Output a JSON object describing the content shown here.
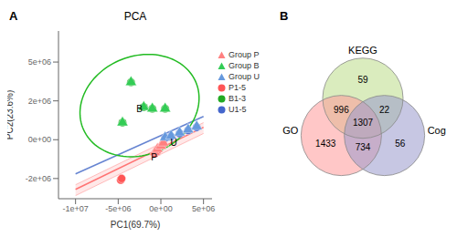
{
  "chart_data": [
    {
      "type": "scatter",
      "panel_label": "A",
      "title": "PCA",
      "x_label": "PC1(69.7%)",
      "y_label": "PC2(23.6%)",
      "xlim": [
        -12000000,
        6000000
      ],
      "ylim": [
        -3800000,
        7000000
      ],
      "xticks": [
        {
          "value": -10000000,
          "label": "-1e+07"
        },
        {
          "value": -5000000,
          "label": "-5e+06"
        },
        {
          "value": 0,
          "label": "0e+00"
        },
        {
          "value": 5000000,
          "label": "5e+06"
        }
      ],
      "yticks": [
        {
          "value": -2500000,
          "label": "-2e+06"
        },
        {
          "value": 0,
          "label": "0e+00"
        },
        {
          "value": 2500000,
          "label": "2e+06"
        },
        {
          "value": 5000000,
          "label": "5e+06"
        }
      ],
      "grid": false,
      "legend": "upper right",
      "series": [
        {
          "type": "band",
          "color": "#FF6666",
          "x": [
            -10000000,
            5000000
          ],
          "lower": [
            -3600000,
            400000
          ],
          "upper": [
            -2900000,
            1100000
          ]
        },
        {
          "type": "line",
          "color": "#FF6666",
          "x": [
            -10000000,
            5000000
          ],
          "values": [
            -3200000,
            800000
          ]
        },
        {
          "type": "line",
          "color": "#5577CC",
          "x": [
            -10000000,
            5000000
          ],
          "values": [
            -2200000,
            1500000
          ]
        },
        {
          "type": "ellipse",
          "color": "#22BB22",
          "center": [
            -2500000,
            2200000
          ],
          "width": 14000000,
          "height": 6500000,
          "angle": 5
        },
        {
          "type": "scatter",
          "name": "Group P",
          "marker": "triangle",
          "color": "#FF8080",
          "x": [
            -700000,
            -400000,
            0,
            300000
          ],
          "values": [
            -800000,
            -600000,
            -400000,
            -200000
          ]
        },
        {
          "type": "scatter",
          "name": "Group B",
          "marker": "triangle",
          "color": "#33CC55",
          "x": [
            -4500000,
            -3500000,
            -2000000,
            -1000000,
            500000
          ],
          "values": [
            1100000,
            3700000,
            2100000,
            2000000,
            2000000
          ]
        },
        {
          "type": "scatter",
          "name": "Group U",
          "marker": "triangle",
          "color": "#6699DD",
          "x": [
            500000,
            1200000,
            2200000,
            3200000,
            4200000
          ],
          "values": [
            150000,
            250000,
            450000,
            650000,
            850000
          ]
        },
        {
          "type": "scatter",
          "name": "P1-5",
          "marker": "circle",
          "color": "#FF5555",
          "x": [
            -4700000,
            -4600000,
            -700000,
            -400000,
            200000
          ],
          "values": [
            -2600000,
            -2500000,
            -900000,
            -700000,
            -350000
          ]
        },
        {
          "type": "scatter",
          "name": "B1-3",
          "marker": "circle",
          "color": "#22AA22",
          "x": [
            -4500000,
            -3500000,
            -2000000,
            -1000000,
            500000
          ],
          "values": [
            1100000,
            3700000,
            2100000,
            2000000,
            2000000
          ]
        },
        {
          "type": "scatter",
          "name": "U1-5",
          "marker": "circle",
          "color": "#4466CC",
          "x": [
            500000,
            1200000,
            2200000,
            3200000,
            4200000
          ],
          "values": [
            100000,
            200000,
            400000,
            600000,
            800000
          ]
        }
      ],
      "annotations": [
        {
          "text": "P",
          "x": -800000,
          "y": -1100000
        },
        {
          "text": "B",
          "x": -2500000,
          "y": 2000000
        },
        {
          "text": "U",
          "x": 1500000,
          "y": -200000
        }
      ]
    },
    {
      "type": "venn",
      "panel_label": "B",
      "sets": [
        {
          "name": "KEGG",
          "color": "#BBDD88"
        },
        {
          "name": "GO",
          "color": "#FF9999"
        },
        {
          "name": "Cog",
          "color": "#9999CC"
        }
      ],
      "regions": [
        {
          "sets": [
            "KEGG"
          ],
          "value": 59
        },
        {
          "sets": [
            "GO"
          ],
          "value": 1433
        },
        {
          "sets": [
            "Cog"
          ],
          "value": 56
        },
        {
          "sets": [
            "KEGG",
            "GO"
          ],
          "value": 996
        },
        {
          "sets": [
            "KEGG",
            "Cog"
          ],
          "value": 22
        },
        {
          "sets": [
            "GO",
            "Cog"
          ],
          "value": 734
        },
        {
          "sets": [
            "KEGG",
            "GO",
            "Cog"
          ],
          "value": 1307
        }
      ]
    }
  ]
}
